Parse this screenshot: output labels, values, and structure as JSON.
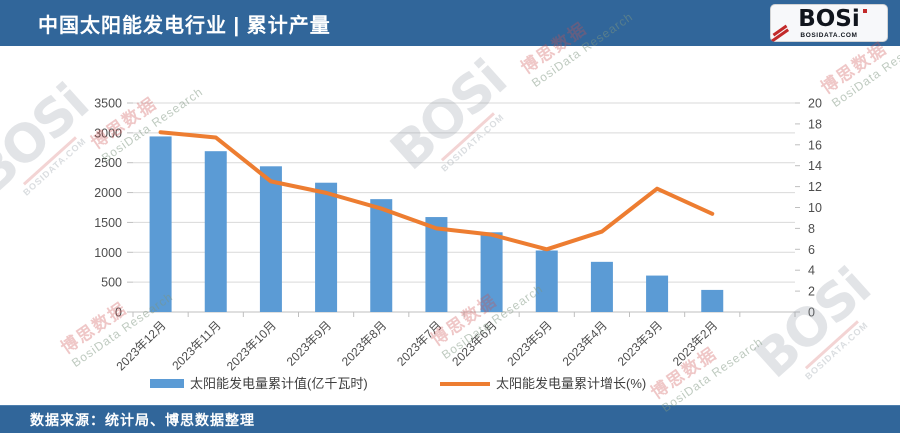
{
  "header": {
    "title": "中国太阳能发电行业 | 累计产量"
  },
  "logo": {
    "text": "BOSi",
    "subtext": "BOSIDATA.COM"
  },
  "footer": {
    "source": "数据来源：统计局、博思数据整理"
  },
  "watermarks": {
    "cn": "博思数据",
    "en": "BosiData Research",
    "logo": "BOSi",
    "site": "BOSIDATA.COM"
  },
  "chart_data": {
    "type": "bar",
    "subtype": "bar+line combo",
    "categories": [
      "2023年12月",
      "2023年11月",
      "2023年10月",
      "2023年9月",
      "2023年8月",
      "2023年7月",
      "2023年6月",
      "2023年5月",
      "2023年4月",
      "2023年3月",
      "2023年2月"
    ],
    "series": [
      {
        "name": "太阳能发电量累计值(亿千瓦时)",
        "type": "bar",
        "axis": "left",
        "color": "#5b9bd5",
        "values": [
          2940,
          2693,
          2440,
          2165,
          1890,
          1590,
          1335,
          1030,
          840,
          610,
          370
        ]
      },
      {
        "name": "太阳能发电量累计增长(%)",
        "type": "line",
        "axis": "right",
        "color": "#ed7d31",
        "values": [
          17.2,
          16.7,
          12.5,
          11.4,
          9.9,
          8.0,
          7.4,
          6.0,
          7.7,
          11.8,
          9.4
        ]
      }
    ],
    "title": "中国太阳能发电行业 | 累计产量",
    "xlabel": "",
    "ylabel_left": "亿千瓦时",
    "ylabel_right": "%",
    "left_axis": {
      "min": 0,
      "max": 3500,
      "step": 500
    },
    "right_axis": {
      "min": 0,
      "max": 20,
      "step": 2
    },
    "grid": true,
    "legend_position": "bottom"
  }
}
